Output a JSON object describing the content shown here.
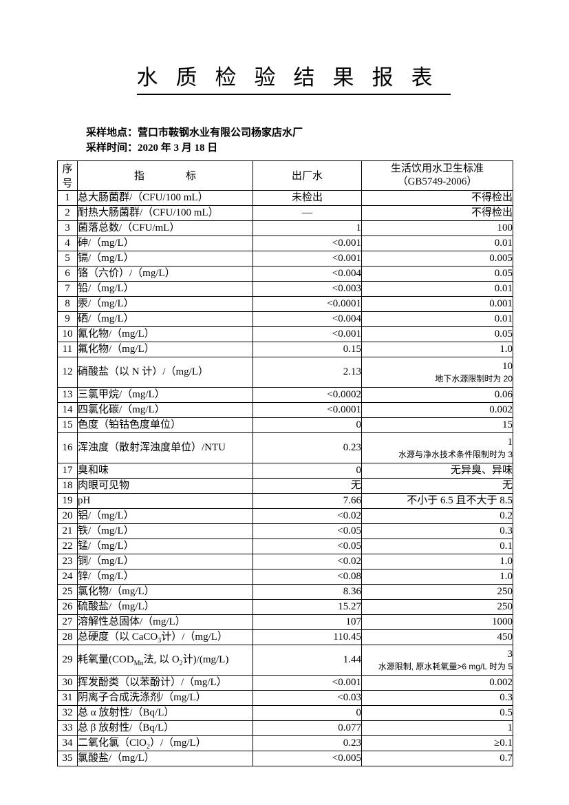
{
  "doc": {
    "title": "水质检验结果报表",
    "sampling_location": "采样地点：营口市鞍钢水业有限公司杨家店水厂",
    "sampling_time": "采样时间：2020 年 3 月 18 日"
  },
  "colors": {
    "page_bg": "#ffffff",
    "text": "#000000",
    "border": "#000000"
  },
  "table": {
    "header": {
      "no": "序号",
      "indicator": "指　　　　标",
      "outgoing_water": "出厂水",
      "standard_line1": "生活饮用水卫生标准",
      "standard_line2": "（GB5749-2006）"
    },
    "rows": [
      {
        "no": "1",
        "indicator": "总大肠菌群/（CFU/100 mL）",
        "value": "未检出",
        "value_center": true,
        "standard": "不得检出"
      },
      {
        "no": "2",
        "indicator": "耐热大肠菌群/（CFU/100 mL）",
        "value": "—",
        "value_center": true,
        "standard": "不得检出"
      },
      {
        "no": "3",
        "indicator": "菌落总数/（CFU/mL）",
        "value": "1",
        "standard": "100"
      },
      {
        "no": "4",
        "indicator": "砷/（mg/L）",
        "value": "<0.001",
        "standard": "0.01"
      },
      {
        "no": "5",
        "indicator": "镉/（mg/L）",
        "value": "<0.001",
        "standard": "0.005"
      },
      {
        "no": "6",
        "indicator": "铬（六价）/（mg/L）",
        "value": "<0.004",
        "standard": "0.05"
      },
      {
        "no": "7",
        "indicator": "铅/（mg/L）",
        "value": "<0.003",
        "standard": "0.01"
      },
      {
        "no": "8",
        "indicator": "汞/（mg/L）",
        "value": "<0.0001",
        "standard": "0.001"
      },
      {
        "no": "9",
        "indicator": "硒/（mg/L）",
        "value": "<0.004",
        "standard": "0.01"
      },
      {
        "no": "10",
        "indicator": "氰化物/（mg/L）",
        "value": "<0.001",
        "standard": "0.05"
      },
      {
        "no": "11",
        "indicator": "氟化物/（mg/L）",
        "value": "0.15",
        "standard": "1.0"
      },
      {
        "no": "12",
        "indicator": "硝酸盐（以 N 计）/（mg/L）",
        "value": "2.13",
        "standard": "10",
        "note": "地下水源限制时为 20"
      },
      {
        "no": "13",
        "indicator": "三氯甲烷/（mg/L）",
        "value": "<0.0002",
        "standard": "0.06"
      },
      {
        "no": "14",
        "indicator": "四氯化碳/（mg/L）",
        "value": "<0.0001",
        "standard": "0.002"
      },
      {
        "no": "15",
        "indicator": "色度（铂钴色度单位）",
        "value": "0",
        "standard": "15"
      },
      {
        "no": "16",
        "indicator": "浑浊度（散射浑浊度单位）/NTU",
        "value": "0.23",
        "standard": "1",
        "note": "水源与净水技术条件限制时为 3"
      },
      {
        "no": "17",
        "indicator": "臭和味",
        "value": "0",
        "standard": "无异臭、异味"
      },
      {
        "no": "18",
        "indicator": "肉眼可见物",
        "value": "无",
        "standard": "无"
      },
      {
        "no": "19",
        "indicator": "pH",
        "value": "7.66",
        "standard": "不小于 6.5 且不大于 8.5"
      },
      {
        "no": "20",
        "indicator": "铝/（mg/L）",
        "value": "<0.02",
        "standard": "0.2"
      },
      {
        "no": "21",
        "indicator": "铁/（mg/L）",
        "value": "<0.05",
        "standard": "0.3"
      },
      {
        "no": "22",
        "indicator": "锰/（mg/L）",
        "value": "<0.05",
        "standard": "0.1"
      },
      {
        "no": "23",
        "indicator": "铜/（mg/L）",
        "value": "<0.02",
        "standard": "1.0"
      },
      {
        "no": "24",
        "indicator": "锌/（mg/L）",
        "value": "<0.08",
        "standard": "1.0"
      },
      {
        "no": "25",
        "indicator": "氯化物/（mg/L）",
        "value": "8.36",
        "standard": "250"
      },
      {
        "no": "26",
        "indicator": "硫酸盐/（mg/L）",
        "value": "15.27",
        "standard": "250"
      },
      {
        "no": "27",
        "indicator": "溶解性总固体/（mg/L）",
        "value": "107",
        "standard": "1000"
      },
      {
        "no": "28",
        "indicator": "总硬度（以 CaCO~3~计）/（mg/L）",
        "value": "110.45",
        "standard": "450"
      },
      {
        "no": "29",
        "indicator": "耗氧量(COD~Mn~法, 以 O~2~计)/(mg/L)",
        "value": "1.44",
        "standard": "3",
        "note": "水源限制, 原水耗氧量>6 mg/L 时为 5"
      },
      {
        "no": "30",
        "indicator": "挥发酚类（以苯酚计）/（mg/L）",
        "value": "<0.001",
        "standard": "0.002"
      },
      {
        "no": "31",
        "indicator": "阴离子合成洗涤剂/（mg/L）",
        "value": "<0.03",
        "standard": "0.3"
      },
      {
        "no": "32",
        "indicator": "总 α 放射性/（Bq/L）",
        "value": "0",
        "standard": "0.5"
      },
      {
        "no": "33",
        "indicator": "总 β 放射性/（Bq/L）",
        "value": "0.077",
        "standard": "1"
      },
      {
        "no": "34",
        "indicator": "二氧化氯（ClO~2~）/（mg/L）",
        "value": "0.23",
        "standard": "≥0.1"
      },
      {
        "no": "35",
        "indicator": "氯酸盐/（mg/L）",
        "value": "<0.005",
        "standard": "0.7"
      }
    ]
  }
}
